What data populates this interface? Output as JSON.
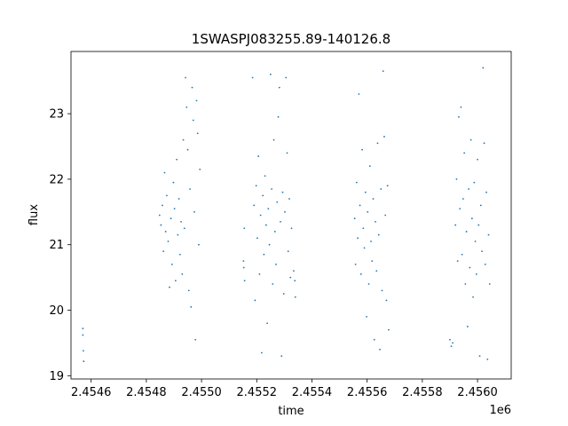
{
  "chart_data": {
    "type": "scatter",
    "title": "1SWASPJ083255.89-140126.8",
    "xlabel": "time",
    "ylabel": "flux",
    "x_offset_label": "1e6",
    "xlim": [
      2454527,
      2456122
    ],
    "ylim": [
      18.95,
      23.95
    ],
    "x_ticks": [
      2454600,
      2454800,
      2455000,
      2455200,
      2455400,
      2455600,
      2455800,
      2456000
    ],
    "x_tick_labels": [
      "2.4546",
      "2.4548",
      "2.4550",
      "2.4552",
      "2.4554",
      "2.4556",
      "2.4558",
      "2.4560"
    ],
    "y_ticks": [
      19,
      20,
      21,
      22,
      23
    ],
    "y_tick_labels": [
      "19",
      "20",
      "21",
      "22",
      "23"
    ],
    "grid": false,
    "marker_color": "#1f77b4",
    "series": [
      {
        "points": [
          [
            2454570,
            19.72
          ],
          [
            2454570,
            19.62
          ],
          [
            2454572,
            19.38
          ],
          [
            2454573,
            19.22
          ],
          [
            2454848,
            21.45
          ],
          [
            2454853,
            21.3
          ],
          [
            2454858,
            21.6
          ],
          [
            2454862,
            20.9
          ],
          [
            2454866,
            22.1
          ],
          [
            2454870,
            21.2
          ],
          [
            2454874,
            21.75
          ],
          [
            2454879,
            21.05
          ],
          [
            2454884,
            20.35
          ],
          [
            2454889,
            21.4
          ],
          [
            2454893,
            20.7
          ],
          [
            2454898,
            21.95
          ],
          [
            2454902,
            21.55
          ],
          [
            2454906,
            20.45
          ],
          [
            2454910,
            22.3
          ],
          [
            2454914,
            21.15
          ],
          [
            2454918,
            21.7
          ],
          [
            2454922,
            20.85
          ],
          [
            2454926,
            21.35
          ],
          [
            2454930,
            20.55
          ],
          [
            2454934,
            22.6
          ],
          [
            2454938,
            21.25
          ],
          [
            2454942,
            23.55
          ],
          [
            2454946,
            23.1
          ],
          [
            2454950,
            22.45
          ],
          [
            2454954,
            20.3
          ],
          [
            2454958,
            21.85
          ],
          [
            2454962,
            20.05
          ],
          [
            2454966,
            23.4
          ],
          [
            2454970,
            22.9
          ],
          [
            2454974,
            21.5
          ],
          [
            2454978,
            19.55
          ],
          [
            2454982,
            23.2
          ],
          [
            2454986,
            22.7
          ],
          [
            2454990,
            21.0
          ],
          [
            2454994,
            22.15
          ],
          [
            2455152,
            20.75
          ],
          [
            2455153,
            20.65
          ],
          [
            2455155,
            21.25
          ],
          [
            2455156,
            20.45
          ],
          [
            2455185,
            23.55
          ],
          [
            2455190,
            21.6
          ],
          [
            2455194,
            20.15
          ],
          [
            2455198,
            21.9
          ],
          [
            2455202,
            21.1
          ],
          [
            2455206,
            22.35
          ],
          [
            2455210,
            20.55
          ],
          [
            2455214,
            21.45
          ],
          [
            2455218,
            19.35
          ],
          [
            2455222,
            21.75
          ],
          [
            2455226,
            20.85
          ],
          [
            2455230,
            22.05
          ],
          [
            2455234,
            21.3
          ],
          [
            2455238,
            19.8
          ],
          [
            2455242,
            21.55
          ],
          [
            2455246,
            21.0
          ],
          [
            2455250,
            23.6
          ],
          [
            2455254,
            21.85
          ],
          [
            2455258,
            20.4
          ],
          [
            2455262,
            22.6
          ],
          [
            2455266,
            21.2
          ],
          [
            2455270,
            20.7
          ],
          [
            2455274,
            21.65
          ],
          [
            2455278,
            22.95
          ],
          [
            2455282,
            23.4
          ],
          [
            2455286,
            21.35
          ],
          [
            2455290,
            19.3
          ],
          [
            2455294,
            21.8
          ],
          [
            2455298,
            20.25
          ],
          [
            2455302,
            21.5
          ],
          [
            2455306,
            23.55
          ],
          [
            2455310,
            22.4
          ],
          [
            2455314,
            20.9
          ],
          [
            2455318,
            21.7
          ],
          [
            2455322,
            20.5
          ],
          [
            2455326,
            21.25
          ],
          [
            2455334,
            20.6
          ],
          [
            2455338,
            20.45
          ],
          [
            2455340,
            20.2
          ],
          [
            2455555,
            21.4
          ],
          [
            2455558,
            20.7
          ],
          [
            2455562,
            21.95
          ],
          [
            2455566,
            21.1
          ],
          [
            2455570,
            23.3
          ],
          [
            2455574,
            21.6
          ],
          [
            2455578,
            20.55
          ],
          [
            2455582,
            22.45
          ],
          [
            2455586,
            21.25
          ],
          [
            2455590,
            20.95
          ],
          [
            2455594,
            21.8
          ],
          [
            2455598,
            19.9
          ],
          [
            2455602,
            21.5
          ],
          [
            2455606,
            20.4
          ],
          [
            2455610,
            22.2
          ],
          [
            2455614,
            21.05
          ],
          [
            2455618,
            20.75
          ],
          [
            2455622,
            21.7
          ],
          [
            2455626,
            19.55
          ],
          [
            2455630,
            21.35
          ],
          [
            2455634,
            20.6
          ],
          [
            2455638,
            22.55
          ],
          [
            2455642,
            21.15
          ],
          [
            2455646,
            19.4
          ],
          [
            2455650,
            21.85
          ],
          [
            2455654,
            20.3
          ],
          [
            2455658,
            23.65
          ],
          [
            2455662,
            22.65
          ],
          [
            2455666,
            21.45
          ],
          [
            2455670,
            20.15
          ],
          [
            2455674,
            21.9
          ],
          [
            2455678,
            19.7
          ],
          [
            2455900,
            19.55
          ],
          [
            2455905,
            19.45
          ],
          [
            2455910,
            19.5
          ],
          [
            2455920,
            21.3
          ],
          [
            2455924,
            22.0
          ],
          [
            2455928,
            20.75
          ],
          [
            2455932,
            22.95
          ],
          [
            2455936,
            21.55
          ],
          [
            2455940,
            23.1
          ],
          [
            2455944,
            20.85
          ],
          [
            2455948,
            21.7
          ],
          [
            2455952,
            22.4
          ],
          [
            2455956,
            20.4
          ],
          [
            2455960,
            21.2
          ],
          [
            2455964,
            19.75
          ],
          [
            2455968,
            21.85
          ],
          [
            2455972,
            20.65
          ],
          [
            2455976,
            22.6
          ],
          [
            2455980,
            21.4
          ],
          [
            2455984,
            20.2
          ],
          [
            2455988,
            21.95
          ],
          [
            2455992,
            21.05
          ],
          [
            2455996,
            20.55
          ],
          [
            2456000,
            22.3
          ],
          [
            2456004,
            21.3
          ],
          [
            2456008,
            19.3
          ],
          [
            2456012,
            21.6
          ],
          [
            2456016,
            20.9
          ],
          [
            2456020,
            23.7
          ],
          [
            2456024,
            22.55
          ],
          [
            2456028,
            20.7
          ],
          [
            2456032,
            21.8
          ],
          [
            2456036,
            19.25
          ],
          [
            2456040,
            21.15
          ],
          [
            2456044,
            20.4
          ]
        ]
      }
    ]
  }
}
